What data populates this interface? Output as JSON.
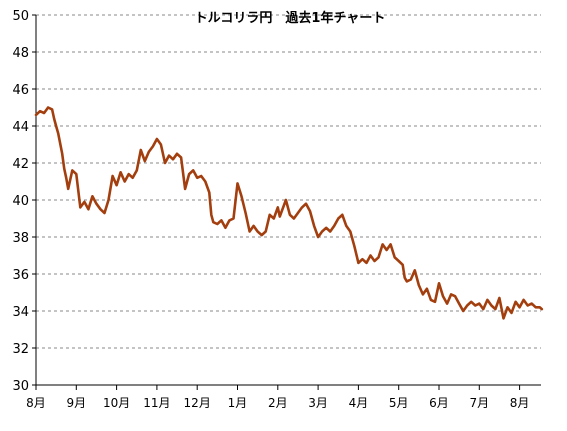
{
  "chart_data": {
    "type": "line",
    "title": "トルコリラ円　過去1年チャート",
    "xlabel": "",
    "ylabel": "",
    "ylim": [
      30,
      50
    ],
    "y_ticks": [
      30,
      32,
      34,
      36,
      38,
      40,
      42,
      44,
      46,
      48,
      50
    ],
    "x_tick_labels": [
      "8月",
      "9月",
      "10月",
      "11月",
      "12月",
      "1月",
      "2月",
      "3月",
      "4月",
      "5月",
      "6月",
      "7月",
      "8月"
    ],
    "grid": "horizontal dashed",
    "line_color": "#a33f0e",
    "x_index_range": [
      0,
      12.55
    ],
    "series": [
      {
        "x": [
          0.0,
          0.1,
          0.2,
          0.3,
          0.4,
          0.45,
          0.5,
          0.55,
          0.65,
          0.7,
          0.75,
          0.8,
          0.9,
          1.0,
          1.1,
          1.2,
          1.3,
          1.4,
          1.5,
          1.6,
          1.7,
          1.8,
          1.9,
          2.0,
          2.1,
          2.2,
          2.3,
          2.4,
          2.5,
          2.6,
          2.7,
          2.8,
          2.9,
          3.0,
          3.1,
          3.2,
          3.3,
          3.4,
          3.5,
          3.6,
          3.7,
          3.8,
          3.9,
          4.0,
          4.1,
          4.2,
          4.3,
          4.35,
          4.4,
          4.5,
          4.6,
          4.7,
          4.8,
          4.9,
          5.0,
          5.1,
          5.2,
          5.3,
          5.4,
          5.5,
          5.6,
          5.7,
          5.8,
          5.9,
          6.0,
          6.05,
          6.1,
          6.2,
          6.3,
          6.4,
          6.5,
          6.6,
          6.7,
          6.8,
          6.9,
          7.0,
          7.1,
          7.2,
          7.3,
          7.4,
          7.5,
          7.6,
          7.7,
          7.8,
          7.9,
          8.0,
          8.1,
          8.2,
          8.3,
          8.4,
          8.5,
          8.6,
          8.7,
          8.8,
          8.9,
          9.0,
          9.1,
          9.15,
          9.2,
          9.3,
          9.4,
          9.5,
          9.6,
          9.7,
          9.8,
          9.9,
          10.0,
          10.1,
          10.2,
          10.3,
          10.4,
          10.5,
          10.6,
          10.7,
          10.8,
          10.9,
          11.0,
          11.1,
          11.2,
          11.3,
          11.4,
          11.5,
          11.6,
          11.7,
          11.8,
          11.9,
          12.0,
          12.1,
          12.2,
          12.3,
          12.4,
          12.5,
          12.55
        ],
        "y": [
          44.6,
          44.8,
          44.7,
          45.0,
          44.9,
          44.4,
          44.0,
          43.6,
          42.5,
          41.7,
          41.2,
          40.6,
          41.6,
          41.4,
          39.6,
          39.9,
          39.5,
          40.2,
          39.8,
          39.5,
          39.3,
          40.0,
          41.3,
          40.8,
          41.5,
          41.0,
          41.4,
          41.2,
          41.6,
          42.7,
          42.1,
          42.6,
          42.9,
          43.3,
          43.0,
          42.0,
          42.4,
          42.2,
          42.5,
          42.3,
          40.6,
          41.4,
          41.6,
          41.2,
          41.3,
          41.0,
          40.4,
          39.2,
          38.8,
          38.7,
          38.9,
          38.5,
          38.9,
          39.0,
          40.9,
          40.2,
          39.3,
          38.3,
          38.6,
          38.3,
          38.1,
          38.3,
          39.2,
          39.0,
          39.6,
          39.1,
          39.4,
          40.0,
          39.2,
          39.0,
          39.3,
          39.6,
          39.8,
          39.4,
          38.6,
          38.0,
          38.3,
          38.5,
          38.3,
          38.6,
          39.0,
          39.2,
          38.6,
          38.3,
          37.5,
          36.6,
          36.8,
          36.6,
          37.0,
          36.7,
          36.9,
          37.6,
          37.3,
          37.6,
          36.9,
          36.7,
          36.5,
          35.8,
          35.6,
          35.7,
          36.2,
          35.4,
          34.9,
          35.2,
          34.6,
          34.5,
          35.5,
          34.8,
          34.4,
          34.9,
          34.8,
          34.4,
          34.0,
          34.3,
          34.5,
          34.3,
          34.4,
          34.1,
          34.6,
          34.3,
          34.1,
          34.7,
          33.6,
          34.2,
          33.9,
          34.5,
          34.2,
          34.6,
          34.3,
          34.4,
          34.2,
          34.2,
          34.1
        ]
      }
    ]
  }
}
